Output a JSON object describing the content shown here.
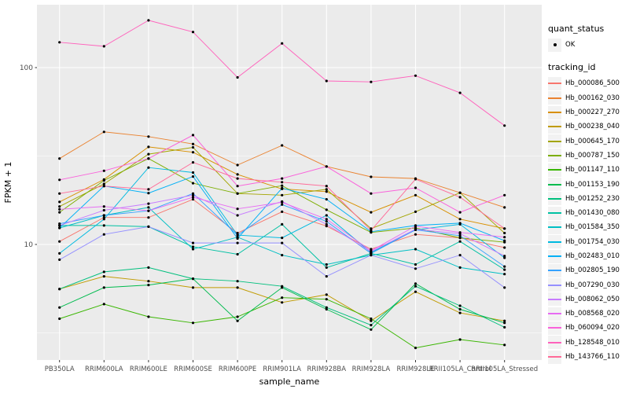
{
  "colors": {
    "panel_background": "#EBEBEB",
    "grid_line": "#FFFFFF",
    "axis_text": "#4D4D4D",
    "tick_mark": "#333333",
    "point": "#000000",
    "legend_key_background": "#F2F2F2"
  },
  "chart_data": {
    "type": "line",
    "title": "",
    "xlabel": "sample_name",
    "ylabel": "FPKM + 1",
    "y_scale": "log10",
    "y_tick_labels": [
      "100",
      "10"
    ],
    "y_tick_values": [
      100,
      10
    ],
    "grid": "on",
    "legend_position": "right",
    "legend": {
      "quant_status_title": "quant_status",
      "quant_status_items": [
        {
          "label": "OK",
          "marker": "point"
        }
      ],
      "tracking_id_title": "tracking_id"
    },
    "categories": [
      "PB350LA",
      "RRIM600LA",
      "RRIM600LE",
      "RRIM600SE",
      "RRIM600PE",
      "RRIM901LA",
      "RRIM928BA",
      "RRIM928LA",
      "RRIM928LE",
      "RRII105LA_Control",
      "RRII105LA_Stressed"
    ],
    "series": [
      {
        "name": "Hb_000086_500",
        "color": "#F8766D",
        "values": [
          10.4,
          14.2,
          14.2,
          18.0,
          11.6,
          15.3,
          12.7,
          9.4,
          11.4,
          10.9,
          9.6
        ]
      },
      {
        "name": "Hb_000162_030",
        "color": "#EA8331",
        "values": [
          30.6,
          43.3,
          40.7,
          37.0,
          28.1,
          36.3,
          27.6,
          24.1,
          23.6,
          19.6,
          16.2
        ]
      },
      {
        "name": "Hb_000227_270",
        "color": "#D89000",
        "values": [
          17.4,
          23.3,
          35.6,
          33.2,
          24.9,
          20.6,
          19.9,
          15.2,
          19.0,
          13.9,
          12.3
        ]
      },
      {
        "name": "Hb_000238_040",
        "color": "#C09B00",
        "values": [
          5.6,
          6.6,
          6.2,
          5.7,
          5.7,
          4.7,
          5.2,
          3.7,
          5.4,
          4.1,
          3.7
        ]
      },
      {
        "name": "Hb_000645_170",
        "color": "#A3A500",
        "values": [
          16.4,
          22.0,
          32.4,
          35.4,
          19.4,
          19.0,
          20.5,
          12.3,
          15.3,
          19.6,
          11.6
        ]
      },
      {
        "name": "Hb_000787_150",
        "color": "#7CAE00",
        "values": [
          15.2,
          23.0,
          30.6,
          22.2,
          19.4,
          21.5,
          15.7,
          11.7,
          12.4,
          10.9,
          10.3
        ]
      },
      {
        "name": "Hb_001147_110",
        "color": "#39B600",
        "values": [
          3.8,
          4.6,
          3.9,
          3.6,
          3.9,
          5.0,
          4.9,
          3.8,
          2.6,
          2.9,
          2.7
        ]
      },
      {
        "name": "Hb_001153_190",
        "color": "#00BB4E",
        "values": [
          4.4,
          5.7,
          5.9,
          6.4,
          3.7,
          5.7,
          4.3,
          3.3,
          6.0,
          4.3,
          3.6
        ]
      },
      {
        "name": "Hb_001252_230",
        "color": "#00BF7D",
        "values": [
          5.6,
          7.0,
          7.4,
          6.4,
          6.2,
          5.8,
          4.4,
          3.5,
          5.8,
          4.5,
          3.4
        ]
      },
      {
        "name": "Hb_001430_080",
        "color": "#00C1A3",
        "values": [
          12.8,
          12.8,
          12.6,
          9.7,
          8.8,
          13.0,
          7.4,
          8.9,
          7.7,
          10.4,
          7.2
        ]
      },
      {
        "name": "Hb_001584_350",
        "color": "#00BFC4",
        "values": [
          12.4,
          14.6,
          16.2,
          9.4,
          11.0,
          8.7,
          7.7,
          8.7,
          9.4,
          7.4,
          6.8
        ]
      },
      {
        "name": "Hb_001754_030",
        "color": "#00BAE0",
        "values": [
          8.9,
          13.9,
          27.2,
          25.5,
          11.3,
          10.9,
          14.6,
          9.0,
          12.1,
          13.0,
          8.4
        ]
      },
      {
        "name": "Hb_002483_010",
        "color": "#00B0F6",
        "values": [
          12.4,
          21.4,
          19.5,
          24.2,
          10.8,
          20.8,
          18.0,
          11.8,
          12.8,
          13.2,
          10.5
        ]
      },
      {
        "name": "Hb_002805_190",
        "color": "#35A2FF",
        "values": [
          13.1,
          14.6,
          15.5,
          19.4,
          11.3,
          16.8,
          13.5,
          8.9,
          12.1,
          11.2,
          7.5
        ]
      },
      {
        "name": "Hb_007290_030",
        "color": "#9590FF",
        "values": [
          8.2,
          11.4,
          12.6,
          10.2,
          10.2,
          10.2,
          6.6,
          8.7,
          7.3,
          8.7,
          5.7
        ]
      },
      {
        "name": "Hb_008062_050",
        "color": "#C77CFF",
        "values": [
          12.8,
          15.6,
          17.0,
          19.0,
          14.6,
          17.5,
          13.0,
          9.1,
          12.2,
          11.5,
          8.6
        ]
      },
      {
        "name": "Hb_008568_020",
        "color": "#E76BF3",
        "values": [
          15.8,
          16.4,
          15.5,
          18.5,
          15.9,
          17.3,
          13.9,
          9.2,
          12.7,
          11.7,
          11.0
        ]
      },
      {
        "name": "Hb_060094_020",
        "color": "#FA62DB",
        "values": [
          23.2,
          26.1,
          30.6,
          41.5,
          21.4,
          23.6,
          27.6,
          19.4,
          20.9,
          15.2,
          19.0
        ]
      },
      {
        "name": "Hb_128548_010",
        "color": "#FF62BC",
        "values": [
          139,
          132,
          185,
          159,
          88,
          137,
          84,
          83,
          90,
          72,
          47
        ]
      },
      {
        "name": "Hb_143766_110",
        "color": "#FF6A98",
        "values": [
          19.4,
          21.4,
          20.5,
          29.1,
          23.6,
          22.5,
          21.4,
          12.0,
          23.4,
          18.5,
          12.3
        ]
      }
    ]
  }
}
